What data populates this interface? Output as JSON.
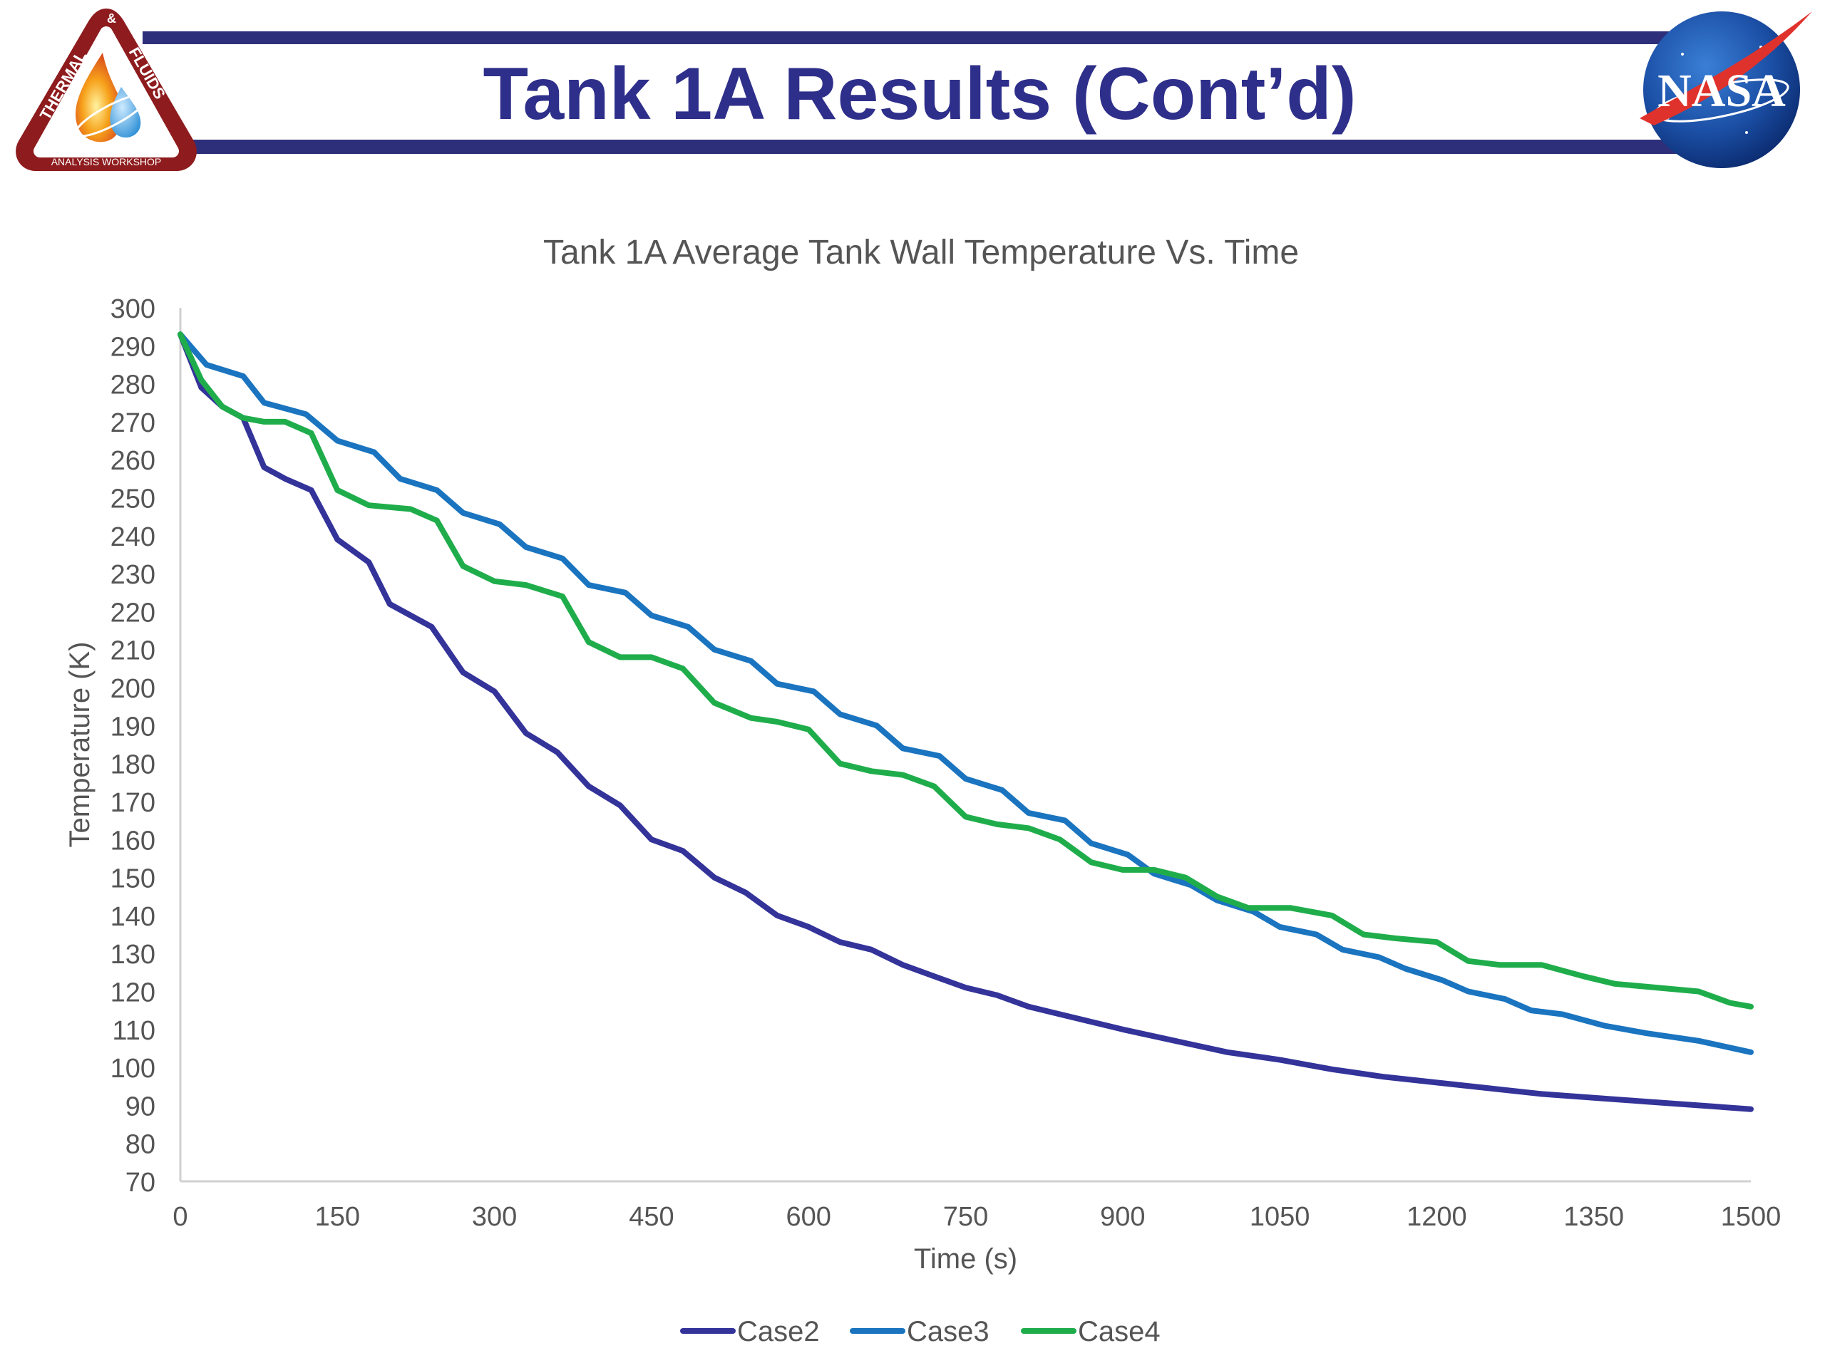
{
  "slide": {
    "title": "Tank 1A Results (Cont’d)",
    "left_logo": {
      "icon": "thermal-fluids-workshop-logo",
      "text_top": "THERMAL",
      "text_amp": "&",
      "text_side": "FLUIDS",
      "text_bottom": "ANALYSIS WORKSHOP"
    },
    "right_logo": {
      "icon": "nasa-meatball-logo",
      "text": "NASA"
    },
    "colors": {
      "title": "#2e2f8a",
      "header_bar": "#2e2f7a"
    }
  },
  "chart_data": {
    "type": "line",
    "title": "Tank 1A Average Tank Wall Temperature Vs. Time",
    "xlabel": "Time (s)",
    "ylabel": "Temperature (K)",
    "xlim": [
      0,
      1500
    ],
    "ylim": [
      70,
      300
    ],
    "x_ticks": [
      0,
      150,
      300,
      450,
      600,
      750,
      900,
      1050,
      1200,
      1350,
      1500
    ],
    "y_ticks": [
      70,
      80,
      90,
      100,
      110,
      120,
      130,
      140,
      150,
      160,
      170,
      180,
      190,
      200,
      210,
      220,
      230,
      240,
      250,
      260,
      270,
      280,
      290,
      300
    ],
    "grid": false,
    "legend_position": "bottom",
    "series": [
      {
        "name": "Case2",
        "color": "#33339a",
        "x": [
          0,
          20,
          40,
          60,
          80,
          100,
          125,
          150,
          180,
          200,
          240,
          270,
          300,
          330,
          360,
          390,
          420,
          450,
          480,
          510,
          540,
          570,
          600,
          630,
          660,
          690,
          720,
          750,
          780,
          810,
          840,
          870,
          900,
          950,
          1000,
          1050,
          1100,
          1150,
          1200,
          1250,
          1300,
          1350,
          1400,
          1450,
          1500
        ],
        "y": [
          293,
          279,
          274,
          271,
          258,
          255,
          252,
          239,
          233,
          222,
          216,
          204,
          199,
          188,
          183,
          174,
          169,
          160,
          157,
          150,
          146,
          140,
          137,
          133,
          131,
          127,
          124,
          121,
          119,
          116,
          114,
          112,
          110,
          107,
          104,
          102,
          99.5,
          97.5,
          96,
          94.5,
          93,
          92,
          91,
          90,
          89
        ]
      },
      {
        "name": "Case3",
        "color": "#1a74bf",
        "x": [
          0,
          25,
          60,
          80,
          120,
          150,
          185,
          210,
          245,
          270,
          305,
          330,
          365,
          390,
          425,
          450,
          485,
          510,
          545,
          570,
          605,
          630,
          665,
          690,
          725,
          750,
          785,
          810,
          845,
          870,
          905,
          930,
          965,
          990,
          1025,
          1050,
          1085,
          1110,
          1145,
          1170,
          1205,
          1230,
          1265,
          1290,
          1320,
          1360,
          1400,
          1450,
          1500
        ],
        "y": [
          293,
          285,
          282,
          275,
          272,
          265,
          262,
          255,
          252,
          246,
          243,
          237,
          234,
          227,
          225,
          219,
          216,
          210,
          207,
          201,
          199,
          193,
          190,
          184,
          182,
          176,
          173,
          167,
          165,
          159,
          156,
          151,
          148,
          144,
          141,
          137,
          135,
          131,
          129,
          126,
          123,
          120,
          118,
          115,
          114,
          111,
          109,
          107,
          104
        ]
      },
      {
        "name": "Case4",
        "color": "#1fad4b",
        "x": [
          0,
          20,
          40,
          60,
          80,
          100,
          125,
          150,
          180,
          220,
          245,
          270,
          300,
          330,
          365,
          390,
          420,
          450,
          480,
          510,
          545,
          570,
          600,
          630,
          660,
          690,
          720,
          750,
          780,
          810,
          840,
          870,
          900,
          930,
          960,
          990,
          1020,
          1060,
          1100,
          1130,
          1160,
          1200,
          1230,
          1260,
          1300,
          1340,
          1370,
          1410,
          1450,
          1480,
          1500
        ],
        "y": [
          293,
          281,
          274,
          271,
          270,
          270,
          267,
          252,
          248,
          247,
          244,
          232,
          228,
          227,
          224,
          212,
          208,
          208,
          205,
          196,
          192,
          191,
          189,
          180,
          178,
          177,
          174,
          166,
          164,
          163,
          160,
          154,
          152,
          152,
          150,
          145,
          142,
          142,
          140,
          135,
          134,
          133,
          128,
          127,
          127,
          124,
          122,
          121,
          120,
          117,
          116
        ]
      }
    ]
  }
}
